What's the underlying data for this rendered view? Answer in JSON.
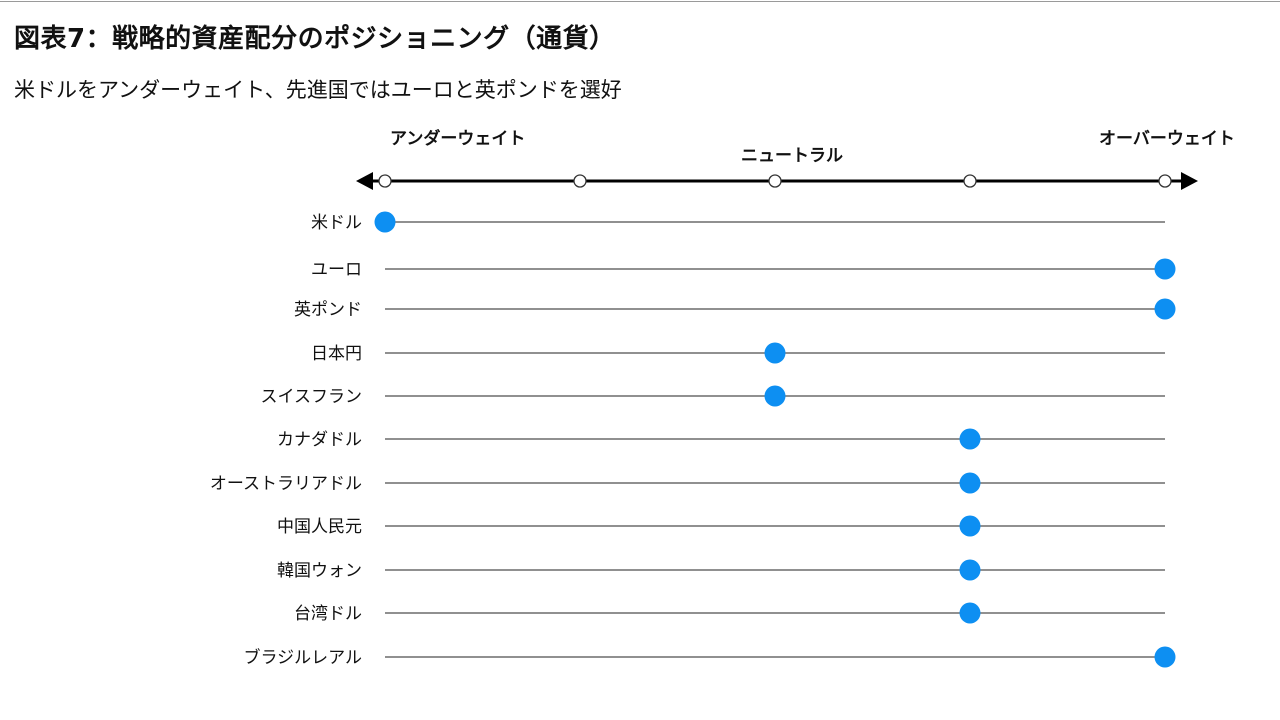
{
  "header": {
    "title": "図表7：戦略的資産配分のポジショニング（通貨）",
    "subtitle": "米ドルをアンダーウェイト、先進国ではユーロと英ポンドを選好"
  },
  "chart_data": {
    "type": "scatter",
    "scale_labels": {
      "left": "アンダーウェイト",
      "center": "ニュートラル",
      "right": "オーバーウェイト"
    },
    "scale_levels": [
      -2,
      -1,
      0,
      1,
      2
    ],
    "xlim": [
      -2,
      2
    ],
    "categories": [
      "米ドル",
      "ユーロ",
      "英ポンド",
      "日本円",
      "スイスフラン",
      "カナダドル",
      "オーストラリアドル",
      "中国人民元",
      "韓国ウォン",
      "台湾ドル",
      "ブラジルレアル"
    ],
    "values": [
      -2,
      2,
      2,
      0,
      0,
      1,
      1,
      1,
      1,
      1,
      2
    ],
    "colors": {
      "dot": "#0d8ff2",
      "axis": "#000000",
      "row_line": "#4d4d4d"
    }
  }
}
